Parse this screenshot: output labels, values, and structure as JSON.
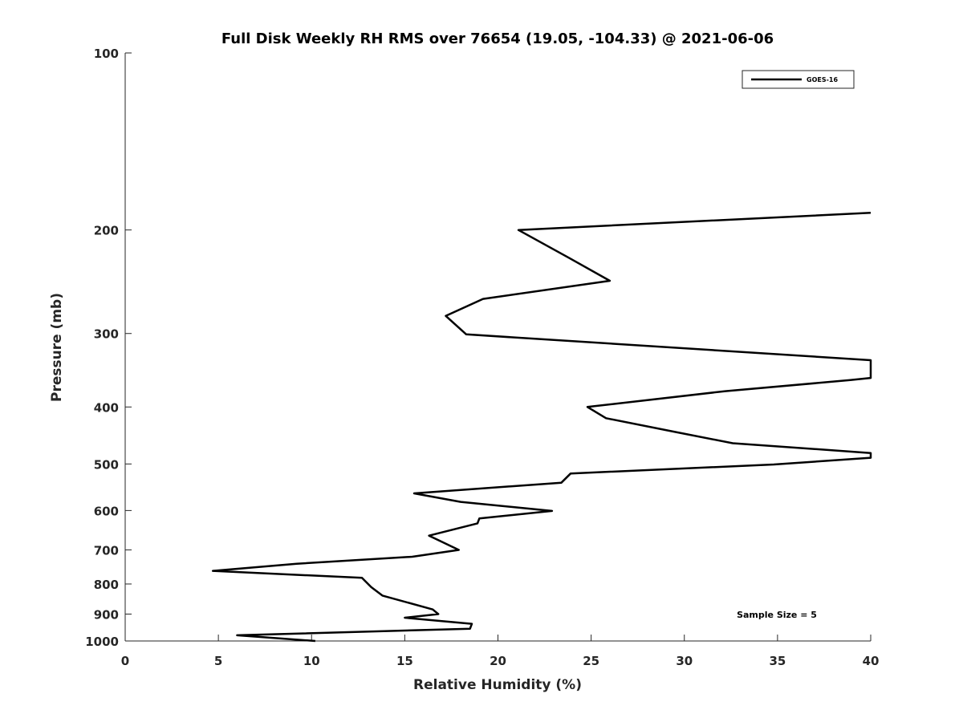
{
  "chart_data": {
    "type": "line",
    "title": "Full Disk Weekly RH RMS over 76654 (19.05, -104.33) @ 2021-06-06",
    "xlabel": "Relative Humidity (%)",
    "ylabel": "Pressure (mb)",
    "xlim": [
      0,
      40
    ],
    "ylim": [
      100,
      1000
    ],
    "yscale": "log",
    "yreversed": true,
    "xticks": [
      0,
      5,
      10,
      15,
      20,
      25,
      30,
      35,
      40
    ],
    "yticks": [
      100,
      200,
      300,
      400,
      500,
      600,
      700,
      800,
      900,
      1000
    ],
    "grid": false,
    "legend_position": "top-right",
    "annotation": "Sample Size = 5",
    "series": [
      {
        "name": "GOES-16",
        "color": "#000000",
        "points": [
          [
            40.0,
            187
          ],
          [
            21.1,
            200
          ],
          [
            23.8,
            223
          ],
          [
            26.0,
            244
          ],
          [
            19.2,
            262
          ],
          [
            17.2,
            280
          ],
          [
            18.3,
            301
          ],
          [
            40.0,
            333
          ],
          [
            40.0,
            357
          ],
          [
            38.9,
            360
          ],
          [
            32.2,
            376
          ],
          [
            24.8,
            400
          ],
          [
            25.8,
            418
          ],
          [
            29.5,
            441
          ],
          [
            32.6,
            461
          ],
          [
            40.0,
            479
          ],
          [
            40.0,
            488
          ],
          [
            34.8,
            501
          ],
          [
            23.9,
            519
          ],
          [
            23.4,
            538
          ],
          [
            15.5,
            561
          ],
          [
            18.0,
            580
          ],
          [
            22.9,
            601
          ],
          [
            19.0,
            619
          ],
          [
            18.9,
            631
          ],
          [
            16.3,
            662
          ],
          [
            16.9,
            676
          ],
          [
            17.9,
            700
          ],
          [
            15.4,
            719
          ],
          [
            9.2,
            739
          ],
          [
            4.7,
            760
          ],
          [
            12.7,
            781
          ],
          [
            13.2,
            810
          ],
          [
            13.8,
            837
          ],
          [
            16.5,
            884
          ],
          [
            16.8,
            900
          ],
          [
            15.0,
            913
          ],
          [
            18.6,
            935
          ],
          [
            18.5,
            953
          ],
          [
            6.0,
            978
          ],
          [
            10.2,
            1000
          ]
        ]
      }
    ]
  }
}
